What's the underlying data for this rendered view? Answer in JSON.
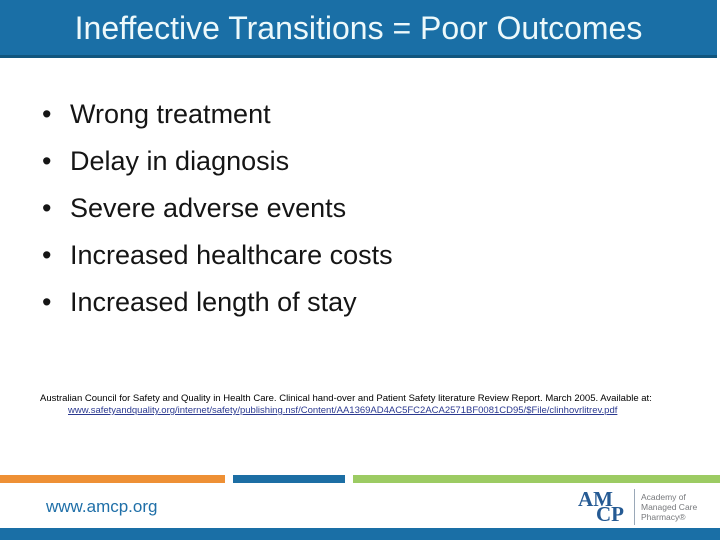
{
  "title": "Ineffective Transitions = Poor Outcomes",
  "bullets": [
    "Wrong treatment",
    "Delay in diagnosis",
    "Severe adverse events",
    "Increased healthcare costs",
    "Increased length of stay"
  ],
  "citation": {
    "text": "Australian Council for Safety and Quality in Health Care. Clinical hand-over and Patient Safety literature Review Report. March 2005. Available at:",
    "link": "www.safetyandquality.org/internet/safety/publishing.nsf/Content/AA1369AD4AC5FC2ACA2571BF0081CD95/$File/clinhovrlitrev.pdf"
  },
  "footer": {
    "website": "www.amcp.org",
    "logo": {
      "line1": "AM",
      "line2": "CP",
      "tagline": [
        "Academy of",
        "Managed Care",
        "Pharmacy®"
      ]
    }
  },
  "colors": {
    "header_blue": "#1A6FA6",
    "header_border": "#11567E",
    "stripe_orange": "#EE9035",
    "stripe_blue": "#1C6EA4",
    "stripe_green": "#9CCB63",
    "link_blue": "#2B3990",
    "amcp_blue": "#1F6FA8",
    "logo_navy": "#255A93"
  }
}
